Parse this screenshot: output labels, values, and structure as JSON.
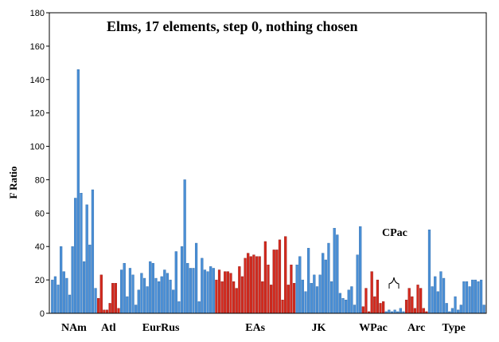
{
  "colors": {
    "blue": "#4a8fd6",
    "blue_edge": "#2e6aa8",
    "red": "#d42a1e",
    "red_edge": "#8e1410",
    "axis": "#000000"
  },
  "chart_data": {
    "type": "bar",
    "title": "Elms, 17 elements, step 0, nothing chosen",
    "ylabel": "F Ratio",
    "xlabel": "",
    "ylim": [
      0,
      180
    ],
    "yticks": [
      0,
      20,
      40,
      60,
      80,
      100,
      120,
      140,
      160,
      180
    ],
    "grid": false,
    "annotation": "CPac",
    "groups": [
      {
        "label": "NAm",
        "color": "blue",
        "values": [
          20,
          22,
          17,
          40,
          25,
          21,
          11,
          40,
          69,
          146,
          72,
          31,
          65,
          41,
          74,
          15
        ]
      },
      {
        "label": "Atl",
        "color": "red",
        "values": [
          9,
          23,
          2,
          2,
          6,
          18,
          18,
          3
        ]
      },
      {
        "label": "EurRus",
        "color": "blue",
        "values": [
          26,
          30,
          10,
          27,
          23,
          5,
          14,
          24,
          21,
          16,
          31,
          30,
          21,
          19,
          22,
          26,
          24,
          20,
          14,
          37,
          7,
          40,
          80,
          30,
          27,
          27,
          42,
          7,
          33,
          26,
          25,
          28,
          27
        ]
      },
      {
        "label": "EAs",
        "color": "red",
        "values": [
          20,
          26,
          19,
          25,
          25,
          24,
          19,
          15,
          28,
          22,
          33,
          36,
          34,
          35,
          34,
          34,
          19,
          43,
          29,
          17,
          38,
          38,
          44,
          8,
          46,
          17,
          29,
          18
        ]
      },
      {
        "label": "JK",
        "color": "blue",
        "values": [
          29,
          34,
          20,
          13,
          39,
          18,
          23,
          16,
          23,
          36,
          32,
          42,
          19,
          51,
          47,
          12,
          9,
          8,
          14,
          16,
          5,
          35,
          52
        ]
      },
      {
        "label": "WPac",
        "color": "red",
        "values": [
          4,
          15,
          1,
          25,
          10,
          20,
          6,
          7
        ]
      },
      {
        "label": "CPac",
        "color": "blue",
        "values": [
          1,
          2,
          1,
          2,
          1,
          3,
          1
        ]
      },
      {
        "label": "Arc",
        "color": "red",
        "values": [
          8,
          15,
          10,
          3,
          17,
          15,
          3,
          1
        ]
      },
      {
        "label": "Type",
        "color": "blue",
        "values": [
          50,
          16,
          22,
          13,
          25,
          21,
          6,
          1,
          3,
          10,
          2,
          5,
          19,
          19,
          16,
          20,
          20,
          19,
          20,
          5
        ]
      }
    ]
  }
}
